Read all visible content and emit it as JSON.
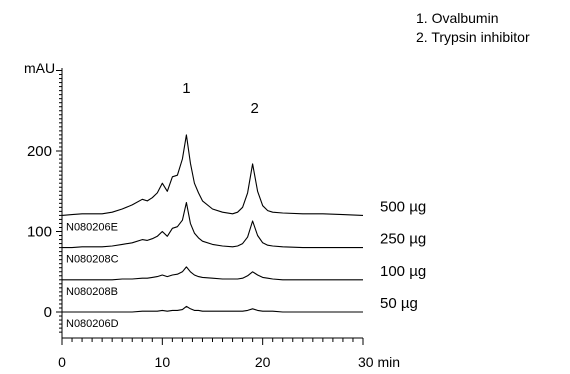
{
  "chart_data": {
    "type": "line",
    "title": "",
    "xlabel": "",
    "ylabel": "mAU",
    "x_unit": "min",
    "xlim": [
      0,
      30
    ],
    "ylim": [
      0,
      250
    ],
    "x_ticks": [
      "0",
      "10",
      "20",
      "30"
    ],
    "y_ticks": [
      "0",
      "100",
      "200"
    ],
    "grid": false,
    "legend_position": "top-right",
    "legend": [
      "1. Ovalbumin",
      "2. Trypsin inhibitor"
    ],
    "peak_labels": [
      {
        "label": "1",
        "x": 12.4
      },
      {
        "label": "2",
        "x": 19.2
      }
    ],
    "x": [
      0,
      1,
      2,
      3,
      4,
      5,
      6,
      7,
      8,
      8.5,
      9,
      9.5,
      10,
      10.5,
      11,
      11.5,
      12,
      12.4,
      12.8,
      13.2,
      13.6,
      14,
      15,
      16,
      17,
      17.5,
      18,
      18.5,
      19,
      19.5,
      20,
      20.5,
      21,
      22,
      24,
      26,
      28,
      30
    ],
    "series": [
      {
        "name": "500 µg",
        "sample": "N080206E",
        "values": [
          120,
          121,
          122,
          122,
          122,
          124,
          128,
          133,
          140,
          138,
          142,
          148,
          160,
          150,
          168,
          170,
          190,
          220,
          185,
          160,
          148,
          138,
          128,
          124,
          122,
          124,
          130,
          148,
          184,
          150,
          132,
          126,
          124,
          123,
          122,
          122,
          121,
          120
        ]
      },
      {
        "name": "250 µg",
        "sample": "N080208C",
        "values": [
          80,
          80,
          81,
          81,
          81,
          82,
          84,
          86,
          90,
          89,
          91,
          94,
          100,
          94,
          104,
          106,
          114,
          136,
          110,
          98,
          92,
          88,
          84,
          82,
          81,
          82,
          85,
          93,
          113,
          95,
          86,
          83,
          82,
          81,
          80,
          80,
          80,
          80
        ]
      },
      {
        "name": "100 µg",
        "sample": "N080208B",
        "values": [
          40,
          40,
          40,
          40,
          40,
          40,
          41,
          41,
          42,
          42,
          43,
          44,
          46,
          44,
          46,
          47,
          50,
          56,
          50,
          46,
          44,
          43,
          42,
          41,
          41,
          41,
          42,
          45,
          50,
          46,
          43,
          42,
          41,
          40,
          40,
          40,
          40,
          40
        ]
      },
      {
        "name": "50 µg",
        "sample": "N080206D",
        "values": [
          0,
          0,
          0,
          0,
          0,
          0,
          0,
          0,
          1,
          1,
          1,
          1,
          2,
          1,
          2,
          2,
          3,
          7,
          4,
          2,
          2,
          1,
          1,
          1,
          1,
          1,
          1,
          2,
          4,
          2,
          1,
          1,
          1,
          0,
          0,
          0,
          0,
          0
        ]
      }
    ]
  }
}
